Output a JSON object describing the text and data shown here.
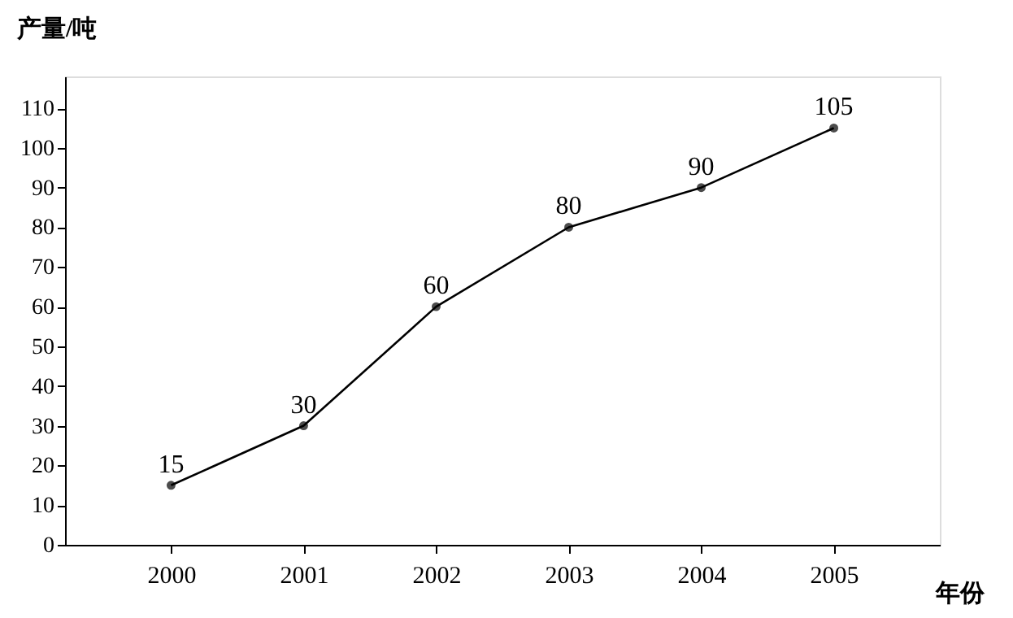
{
  "chart_data": {
    "type": "line",
    "xlabel": "年份",
    "ylabel": "产量/吨",
    "categories": [
      "2000",
      "2001",
      "2002",
      "2003",
      "2004",
      "2005"
    ],
    "series": [
      {
        "color": "#000000",
        "values": [
          15,
          30,
          60,
          80,
          90,
          105
        ]
      }
    ],
    "ylim": [
      0,
      118
    ],
    "yticks": [
      0,
      10,
      20,
      30,
      40,
      50,
      60,
      70,
      80,
      90,
      100,
      110
    ],
    "data_labels": true,
    "marker": "circle",
    "line_style": "solid",
    "grid": false
  }
}
